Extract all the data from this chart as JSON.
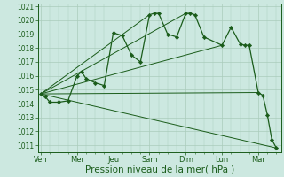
{
  "background_color": "#cce8e0",
  "grid_color": "#aaccbb",
  "line_color": "#1a5c1a",
  "marker_color": "#1a5c1a",
  "xlabel": "Pression niveau de la mer( hPa )",
  "xlabel_fontsize": 7.5,
  "ylim": [
    1010.5,
    1021.2
  ],
  "yticks": [
    1011,
    1012,
    1013,
    1014,
    1015,
    1016,
    1017,
    1018,
    1019,
    1020,
    1021
  ],
  "day_labels": [
    "Ven",
    "Mer",
    "Jeu",
    "Sam",
    "Dim",
    "Lun",
    "Mar"
  ],
  "day_positions": [
    0,
    4,
    8,
    12,
    16,
    20,
    24
  ],
  "xlim": [
    -0.3,
    26.5
  ],
  "main_x": [
    0,
    0.5,
    1,
    2,
    3,
    4,
    4.5,
    5,
    6,
    7,
    8,
    9,
    10,
    11,
    12,
    12.5,
    13,
    14,
    15,
    16,
    16.5,
    17,
    18,
    20,
    21,
    22,
    22.5,
    23,
    24,
    24.5,
    25,
    25.5,
    26
  ],
  "main_y": [
    1014.7,
    1014.5,
    1014.1,
    1014.1,
    1014.2,
    1016.0,
    1016.3,
    1015.8,
    1015.5,
    1015.3,
    1019.1,
    1018.9,
    1017.5,
    1017.0,
    1020.4,
    1020.5,
    1020.5,
    1019.0,
    1018.8,
    1020.5,
    1020.5,
    1020.4,
    1018.8,
    1018.2,
    1019.5,
    1018.3,
    1018.2,
    1018.2,
    1014.8,
    1014.6,
    1013.2,
    1011.4,
    1010.8
  ],
  "trend_lines": [
    {
      "x": [
        0,
        26
      ],
      "y": [
        1014.7,
        1010.8
      ]
    },
    {
      "x": [
        0,
        24
      ],
      "y": [
        1014.7,
        1014.8
      ]
    },
    {
      "x": [
        0,
        20
      ],
      "y": [
        1014.7,
        1018.2
      ]
    },
    {
      "x": [
        0,
        16
      ],
      "y": [
        1014.7,
        1020.5
      ]
    },
    {
      "x": [
        0,
        12
      ],
      "y": [
        1014.7,
        1020.4
      ]
    }
  ]
}
